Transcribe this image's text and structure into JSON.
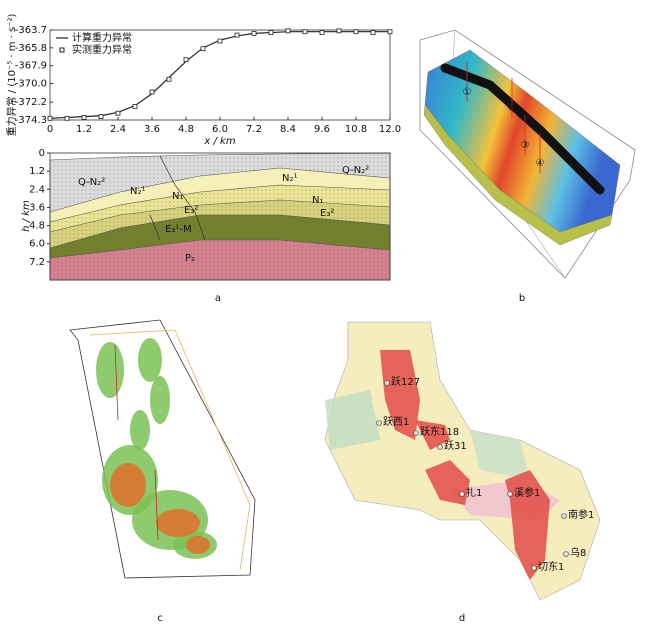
{
  "chart_data": [
    {
      "type": "line",
      "xlabel": "x / km",
      "ylabel": "重力异常 / (10⁻⁵ · m · s⁻²)",
      "x": [
        0,
        0.6,
        1.2,
        1.8,
        2.4,
        3.0,
        3.6,
        4.2,
        4.8,
        5.4,
        6.0,
        6.6,
        7.2,
        7.8,
        8.4,
        9.0,
        9.6,
        10.2,
        10.8,
        11.4,
        12.0
      ],
      "series": [
        {
          "name": "计算重力异常",
          "color": "#222222",
          "style": "line",
          "values": [
            -374.1,
            -374.0,
            -373.9,
            -373.8,
            -373.4,
            -372.6,
            -371.2,
            -369.3,
            -367.4,
            -365.8,
            -364.9,
            -364.4,
            -364.1,
            -364.0,
            -363.9,
            -363.9,
            -363.9,
            -363.9,
            -363.9,
            -363.9,
            -363.9
          ]
        },
        {
          "name": "实测重力异常",
          "color": "#222222",
          "style": "square",
          "values": [
            -374.1,
            -374.1,
            -374.0,
            -373.9,
            -373.5,
            -372.7,
            -371.0,
            -369.5,
            -367.2,
            -365.9,
            -365.0,
            -364.3,
            -364.1,
            -364.0,
            -363.8,
            -363.9,
            -364.0,
            -363.8,
            -363.9,
            -364.0,
            -363.9
          ]
        }
      ],
      "xlim": [
        0,
        12
      ],
      "xticks": [
        0,
        1.2,
        2.4,
        3.6,
        4.8,
        {
          "value": 6,
          "label": "6.0"
        },
        7.2,
        8.4,
        9.6,
        10.8,
        {
          "value": 12,
          "label": "12.0"
        }
      ],
      "ylim": [
        -374.3,
        -363.7
      ],
      "yticks": [
        -374.3,
        -372.2,
        {
          "value": -370,
          "label": "-370.0"
        },
        -367.9,
        -365.8,
        -363.7
      ],
      "legend": "upper left"
    },
    {
      "type": "section",
      "ylabel": "h / km",
      "ylim": [
        0,
        8.4
      ],
      "yticks": [
        0,
        1.2,
        2.4,
        3.6,
        4.8,
        {
          "value": 6,
          "label": "6.0"
        },
        7.2
      ],
      "layer_labels": [
        "Q-N₂²",
        "N₂¹",
        "N₁",
        "E₃²",
        "E₃¹-M",
        "P₂",
        "N₂¹",
        "Q-N₂²",
        "N₁",
        "E₃²"
      ]
    }
  ],
  "panel_labels": [
    "a",
    "b",
    "c",
    "d"
  ],
  "panel_b": {
    "markers": [
      "①",
      "②",
      "③",
      "④"
    ]
  },
  "panel_d": {
    "wells": [
      "跃127",
      "跃西1",
      "跃东118",
      "跃31",
      "扎1",
      "溪参1",
      "南参1",
      "乌8",
      "切东1"
    ]
  }
}
